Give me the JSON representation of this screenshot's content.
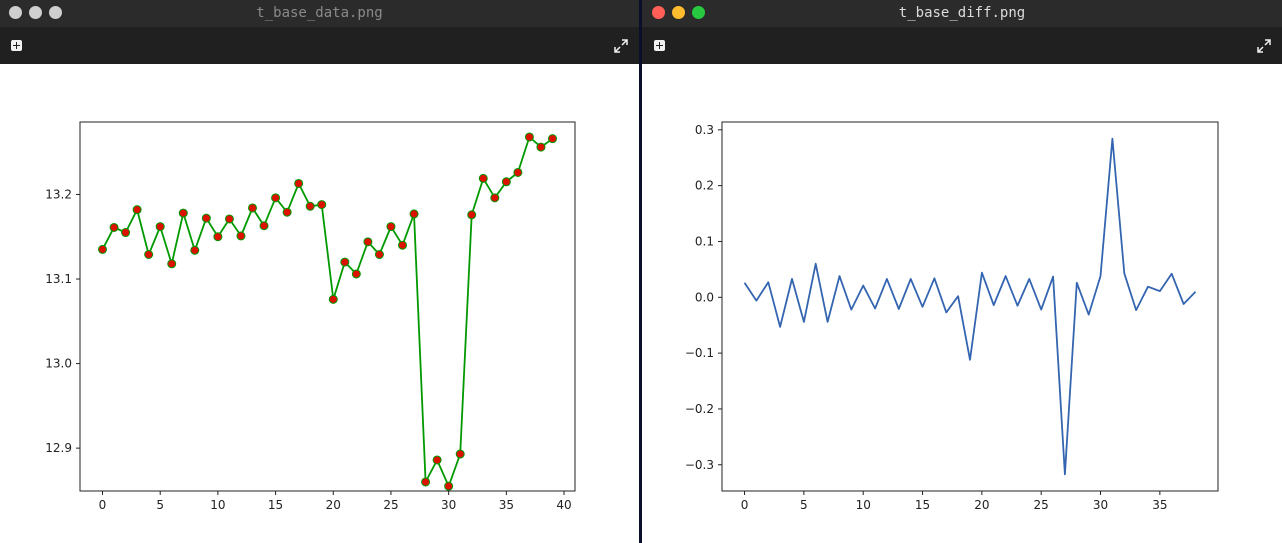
{
  "windows": [
    {
      "title": "t_base_data.png",
      "traffic_lights": [
        "#cfcfcf",
        "#cfcfcf",
        "#cfcfcf"
      ],
      "toolbar": {
        "left_icon": "plus-square-icon",
        "right_icon": "expand-icon"
      }
    },
    {
      "title": "t_base_diff.png",
      "traffic_lights": [
        "#ff5f57",
        "#febc2e",
        "#28c840"
      ],
      "toolbar": {
        "left_icon": "plus-square-icon",
        "right_icon": "expand-icon"
      }
    }
  ],
  "chart_data": [
    {
      "type": "line",
      "line_color": "#009900",
      "marker_color": "#dd1100",
      "markers": true,
      "x": [
        0,
        1,
        2,
        3,
        4,
        5,
        6,
        7,
        8,
        9,
        10,
        11,
        12,
        13,
        14,
        15,
        16,
        17,
        18,
        19,
        20,
        21,
        22,
        23,
        24,
        25,
        26,
        27,
        28,
        29,
        30,
        31,
        32,
        33,
        34,
        35,
        36,
        37,
        38,
        39
      ],
      "y": [
        13.135,
        13.161,
        13.155,
        13.182,
        13.129,
        13.162,
        13.118,
        13.178,
        13.134,
        13.172,
        13.15,
        13.171,
        13.151,
        13.184,
        13.163,
        13.196,
        13.179,
        13.213,
        13.186,
        13.188,
        13.076,
        13.12,
        13.106,
        13.144,
        13.129,
        13.162,
        13.14,
        13.177,
        12.86,
        12.886,
        12.855,
        12.893,
        13.176,
        13.219,
        13.196,
        13.215,
        13.226,
        13.268,
        13.256,
        13.266
      ],
      "xticks": [
        0,
        5,
        10,
        15,
        20,
        25,
        30,
        35,
        40
      ],
      "yticks": [
        12.9,
        13.0,
        13.1,
        13.2
      ],
      "xlim": [
        -1.95,
        40.95
      ],
      "ylim": [
        12.8493,
        13.2857
      ],
      "grid": false
    },
    {
      "type": "line",
      "line_color": "#3465b0",
      "markers": false,
      "x": [
        0,
        1,
        2,
        3,
        4,
        5,
        6,
        7,
        8,
        9,
        10,
        11,
        12,
        13,
        14,
        15,
        16,
        17,
        18,
        19,
        20,
        21,
        22,
        23,
        24,
        25,
        26,
        27,
        28,
        29,
        30,
        31,
        32,
        33,
        34,
        35,
        36,
        37,
        38
      ],
      "y": [
        0.026,
        -0.006,
        0.027,
        -0.053,
        0.033,
        -0.044,
        0.06,
        -0.044,
        0.038,
        -0.022,
        0.021,
        -0.02,
        0.033,
        -0.021,
        0.033,
        -0.017,
        0.034,
        -0.027,
        0.002,
        -0.112,
        0.044,
        -0.014,
        0.038,
        -0.015,
        0.033,
        -0.022,
        0.037,
        -0.317,
        0.026,
        -0.031,
        0.038,
        0.284,
        0.043,
        -0.023,
        0.019,
        0.011,
        0.042,
        -0.012,
        0.01
      ],
      "xticks": [
        0,
        5,
        10,
        15,
        20,
        25,
        30,
        35
      ],
      "yticks": [
        -0.3,
        -0.2,
        -0.1,
        0.0,
        0.1,
        0.2,
        0.3
      ],
      "xlim": [
        -1.9,
        39.9
      ],
      "ylim": [
        -0.347,
        0.314
      ],
      "grid": false
    }
  ]
}
